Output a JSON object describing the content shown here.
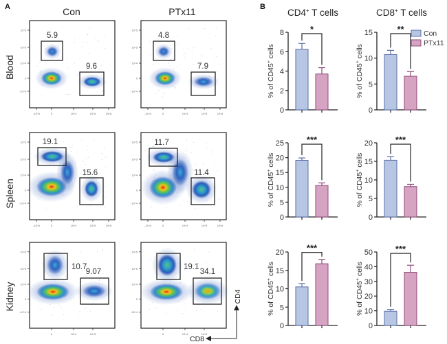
{
  "figure": {
    "panel_a_label": "A",
    "panel_b_label": "B",
    "columns": [
      "Con",
      "PTx11"
    ],
    "rows": [
      "Blood",
      "Spleen",
      "Kidney"
    ],
    "x_axis_marker": "CD8",
    "y_axis_marker": "CD4",
    "flow_tick_labels": {
      "y": [
        "10^5",
        "10^5",
        "10^4",
        "0",
        "-10^4"
      ],
      "x": [
        "-10^4",
        "0",
        "10^4",
        "10^5",
        "10^6"
      ]
    },
    "flow_plots": [
      {
        "row": "Blood",
        "group": "Con",
        "cd4_gate": "5.9",
        "cd8_gate": "9.6"
      },
      {
        "row": "Blood",
        "group": "PTx11",
        "cd4_gate": "4.8",
        "cd8_gate": "7.9"
      },
      {
        "row": "Spleen",
        "group": "Con",
        "cd4_gate": "19.1",
        "cd8_gate": "15.6"
      },
      {
        "row": "Spleen",
        "group": "PTx11",
        "cd4_gate": "11.7",
        "cd8_gate": "11.4"
      },
      {
        "row": "Kidney",
        "group": "Con",
        "cd4_gate": "10.7",
        "cd8_gate": "9.07"
      },
      {
        "row": "Kidney",
        "group": "PTx11",
        "cd4_gate": "19.1",
        "cd8_gate": "34.1"
      }
    ],
    "colors": {
      "con_fill": "#b7c6e3",
      "con_stroke": "#5a6fa8",
      "ptx_fill": "#d6a3c3",
      "ptx_stroke": "#8e4b7a",
      "axis": "#222222",
      "gate": "#222222"
    }
  },
  "chart_data": [
    {
      "type": "bar",
      "title": "CD4+ T cells",
      "tissue": "Blood",
      "categories": [
        "Con",
        "PTx11"
      ],
      "values": [
        6.25,
        3.7
      ],
      "errors": [
        0.6,
        0.65
      ],
      "ylabel": "% of CD45+ cells",
      "ylim": [
        0,
        8
      ],
      "yticks": [
        "0",
        "2",
        "4",
        "6",
        "8"
      ],
      "significance": "*"
    },
    {
      "type": "bar",
      "title": "CD8+ T cells",
      "tissue": "Blood",
      "categories": [
        "Con",
        "PTx11"
      ],
      "values": [
        10.7,
        6.5
      ],
      "errors": [
        0.8,
        0.9
      ],
      "ylabel": "% of CD45+ cells",
      "ylim": [
        0,
        15
      ],
      "yticks": [
        "0",
        "5",
        "10",
        "15"
      ],
      "significance": "**"
    },
    {
      "type": "bar",
      "title": "",
      "tissue": "Spleen",
      "col": "CD4",
      "categories": [
        "Con",
        "PTx11"
      ],
      "values": [
        19.1,
        10.6
      ],
      "errors": [
        0.8,
        0.9
      ],
      "ylabel": "% of CD45+ cells",
      "ylim": [
        0,
        25
      ],
      "yticks": [
        "0",
        "5",
        "10",
        "15",
        "20",
        "25"
      ],
      "significance": "***"
    },
    {
      "type": "bar",
      "title": "",
      "tissue": "Spleen",
      "col": "CD8",
      "categories": [
        "Con",
        "PTx11"
      ],
      "values": [
        15.3,
        8.2
      ],
      "errors": [
        1.0,
        0.6
      ],
      "ylabel": "% of CD45+ cells",
      "ylim": [
        0,
        20
      ],
      "yticks": [
        "0",
        "5",
        "10",
        "15",
        "20"
      ],
      "significance": "***"
    },
    {
      "type": "bar",
      "title": "",
      "tissue": "Kidney",
      "col": "CD4",
      "categories": [
        "Con",
        "PTx11"
      ],
      "values": [
        10.5,
        16.8
      ],
      "errors": [
        0.9,
        1.2
      ],
      "ylabel": "% of CD45+ cells",
      "ylim": [
        0,
        20
      ],
      "yticks": [
        "0",
        "5",
        "10",
        "15",
        "20"
      ],
      "significance": "***"
    },
    {
      "type": "bar",
      "title": "",
      "tissue": "Kidney",
      "col": "CD8",
      "categories": [
        "Con",
        "PTx11"
      ],
      "values": [
        9.7,
        36.2
      ],
      "errors": [
        1.2,
        4.8
      ],
      "ylabel": "% of CD45+ cells",
      "ylim": [
        0,
        50
      ],
      "yticks": [
        "0",
        "10",
        "20",
        "30",
        "40",
        "50"
      ],
      "significance": "***"
    }
  ],
  "legend": {
    "placement": "top-right",
    "entries": [
      {
        "label": "Con",
        "key": "con"
      },
      {
        "label": "PTx11",
        "key": "ptx"
      }
    ]
  }
}
